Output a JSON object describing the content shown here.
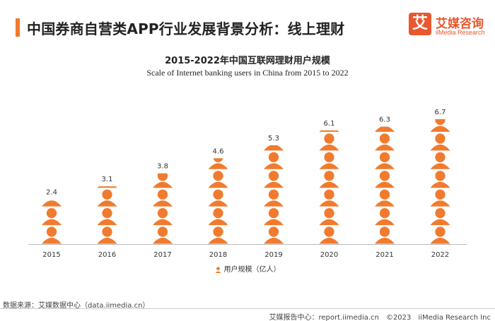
{
  "header": {
    "title": "中国券商自营类APP行业发展背景分析：线上理财",
    "logo_mark": "艾",
    "logo_cn": "艾媒咨询",
    "logo_en": "iiMedia Research"
  },
  "colors": {
    "accent": "#f07b2f",
    "logo": "#e8572e"
  },
  "chart_data": {
    "type": "bar",
    "title": "2015-2022年中国互联网理财用户规模",
    "subtitle": "Scale of Internet banking users in China from 2015 to 2022",
    "categories": [
      "2015",
      "2016",
      "2017",
      "2018",
      "2019",
      "2020",
      "2021",
      "2022"
    ],
    "series": [
      {
        "name": "用户规模（亿人）",
        "values": [
          2.4,
          3.1,
          3.8,
          4.6,
          5.3,
          6.1,
          6.3,
          6.7
        ]
      }
    ],
    "ylim": [
      0,
      7
    ],
    "grid": false,
    "legend_position": "bottom",
    "mark_icon": "person-icon"
  },
  "footer": {
    "source": "数据来源：艾媒数据中心（data.iimedia.cn）",
    "copyright": "艾媒报告中心：report.iimedia.cn　©2023　iiMedia Research  Inc"
  }
}
